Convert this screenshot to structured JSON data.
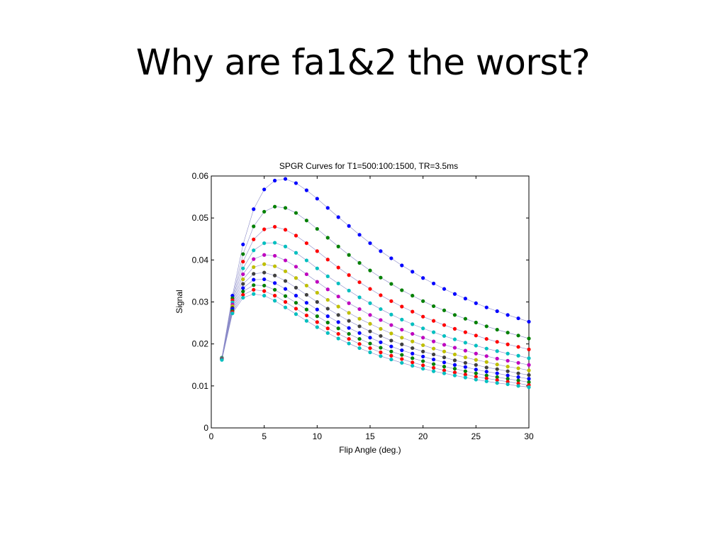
{
  "slide": {
    "title": "Why are fa1&2 the worst?"
  },
  "chart_data": {
    "type": "scatter",
    "title": "SPGR Curves for T1=500:100:1500, TR=3.5ms",
    "xlabel": "Flip Angle (deg.)",
    "ylabel": "Signal",
    "xlim": [
      0,
      30
    ],
    "ylim": [
      0,
      0.06
    ],
    "xticks": [
      0,
      5,
      10,
      15,
      20,
      25,
      30
    ],
    "xtick_labels": [
      "0",
      "5",
      "10",
      "15",
      "20",
      "25",
      "30"
    ],
    "yticks": [
      0,
      0.01,
      0.02,
      0.03,
      0.04,
      0.05,
      0.06
    ],
    "ytick_labels": [
      "0",
      "0.01",
      "0.02",
      "0.03",
      "0.04",
      "0.05",
      "0.06"
    ],
    "grid": false,
    "marker": "dot",
    "connecting_line_color": "#8a8ac8",
    "x": [
      1,
      2,
      3,
      4,
      5,
      6,
      7,
      8,
      9,
      10,
      11,
      12,
      13,
      14,
      15,
      16,
      17,
      18,
      19,
      20,
      21,
      22,
      23,
      24,
      25,
      26,
      27,
      28,
      29,
      30
    ],
    "series": [
      {
        "color": "#0000ff",
        "values": [
          0.0167,
          0.0315,
          0.0437,
          0.0521,
          0.0568,
          0.0589,
          0.0593,
          0.0583,
          0.0566,
          0.0546,
          0.0524,
          0.0502,
          0.0481,
          0.046,
          0.044,
          0.0421,
          0.0404,
          0.0387,
          0.0372,
          0.0357,
          0.0344,
          0.0331,
          0.0319,
          0.0308,
          0.0297,
          0.0287,
          0.0278,
          0.0269,
          0.0261,
          0.0253
        ]
      },
      {
        "color": "#008000",
        "values": [
          0.0167,
          0.0309,
          0.0414,
          0.048,
          0.0515,
          0.0527,
          0.0524,
          0.0512,
          0.0494,
          0.0474,
          0.0453,
          0.0432,
          0.0412,
          0.0393,
          0.0375,
          0.0358,
          0.0343,
          0.0328,
          0.0315,
          0.0302,
          0.029,
          0.028,
          0.0269,
          0.026,
          0.0251,
          0.0242,
          0.0234,
          0.0227,
          0.022,
          0.0213
        ]
      },
      {
        "color": "#ff0000",
        "values": [
          0.0166,
          0.0304,
          0.0396,
          0.0449,
          0.0473,
          0.0479,
          0.0472,
          0.0458,
          0.044,
          0.0421,
          0.0401,
          0.0382,
          0.0364,
          0.0347,
          0.0331,
          0.0316,
          0.0302,
          0.0289,
          0.0277,
          0.0265,
          0.0255,
          0.0245,
          0.0236,
          0.0228,
          0.022,
          0.0212,
          0.0205,
          0.0199,
          0.0193,
          0.0187
        ]
      },
      {
        "color": "#00bfbf",
        "values": [
          0.0166,
          0.0299,
          0.038,
          0.0423,
          0.044,
          0.0441,
          0.0432,
          0.0417,
          0.0399,
          0.038,
          0.0361,
          0.0344,
          0.0327,
          0.0311,
          0.0297,
          0.0283,
          0.027,
          0.0258,
          0.0247,
          0.0237,
          0.0228,
          0.0219,
          0.0211,
          0.0203,
          0.0196,
          0.0189,
          0.0183,
          0.0177,
          0.0172,
          0.0166
        ]
      },
      {
        "color": "#bf00bf",
        "values": [
          0.0165,
          0.0294,
          0.0366,
          0.0402,
          0.0412,
          0.041,
          0.0399,
          0.0384,
          0.0366,
          0.0348,
          0.033,
          0.0313,
          0.0297,
          0.0283,
          0.0269,
          0.0257,
          0.0245,
          0.0234,
          0.0224,
          0.0215,
          0.0206,
          0.0198,
          0.0191,
          0.0184,
          0.0177,
          0.0171,
          0.0165,
          0.016,
          0.0155,
          0.015
        ]
      },
      {
        "color": "#bfbf00",
        "values": [
          0.0165,
          0.029,
          0.0354,
          0.0383,
          0.039,
          0.0385,
          0.0373,
          0.0357,
          0.0339,
          0.0322,
          0.0305,
          0.0289,
          0.0274,
          0.026,
          0.0248,
          0.0236,
          0.0225,
          0.0215,
          0.0206,
          0.0197,
          0.0189,
          0.0182,
          0.0175,
          0.0168,
          0.0162,
          0.0157,
          0.0151,
          0.0146,
          0.0142,
          0.0137
        ]
      },
      {
        "color": "#404040",
        "values": [
          0.0164,
          0.0286,
          0.0343,
          0.0367,
          0.037,
          0.0363,
          0.035,
          0.0334,
          0.0317,
          0.03,
          0.0284,
          0.0269,
          0.0255,
          0.0242,
          0.023,
          0.0219,
          0.0208,
          0.0199,
          0.019,
          0.0182,
          0.0175,
          0.0168,
          0.0161,
          0.0155,
          0.015,
          0.0144,
          0.014,
          0.0135,
          0.013,
          0.0126
        ]
      },
      {
        "color": "#0000ff",
        "values": [
          0.0164,
          0.0283,
          0.0333,
          0.0353,
          0.0354,
          0.0345,
          0.0331,
          0.0315,
          0.0298,
          0.0282,
          0.0266,
          0.0252,
          0.0238,
          0.0226,
          0.0215,
          0.0204,
          0.0194,
          0.0185,
          0.0177,
          0.017,
          0.0163,
          0.0156,
          0.015,
          0.0145,
          0.0139,
          0.0134,
          0.013,
          0.0125,
          0.0121,
          0.0117
        ]
      },
      {
        "color": "#008000",
        "values": [
          0.0163,
          0.0279,
          0.0325,
          0.034,
          0.0339,
          0.0329,
          0.0314,
          0.0298,
          0.0282,
          0.0266,
          0.0251,
          0.0237,
          0.0224,
          0.0212,
          0.0201,
          0.0191,
          0.0182,
          0.0174,
          0.0166,
          0.0159,
          0.0152,
          0.0146,
          0.0141,
          0.0135,
          0.013,
          0.0125,
          0.0121,
          0.0117,
          0.0113,
          0.0109
        ]
      },
      {
        "color": "#ff0000",
        "values": [
          0.0163,
          0.0276,
          0.0317,
          0.0329,
          0.0326,
          0.0315,
          0.03,
          0.0284,
          0.0268,
          0.0252,
          0.0237,
          0.0224,
          0.0212,
          0.02,
          0.019,
          0.018,
          0.0172,
          0.0164,
          0.0156,
          0.0149,
          0.0143,
          0.0137,
          0.0132,
          0.0127,
          0.0122,
          0.0118,
          0.0114,
          0.011,
          0.0106,
          0.0102
        ]
      },
      {
        "color": "#00bfbf",
        "values": [
          0.0162,
          0.0273,
          0.031,
          0.0319,
          0.0315,
          0.0303,
          0.0287,
          0.0271,
          0.0255,
          0.024,
          0.0226,
          0.0213,
          0.0201,
          0.019,
          0.018,
          0.0171,
          0.0163,
          0.0155,
          0.0148,
          0.0141,
          0.0135,
          0.013,
          0.0125,
          0.012,
          0.0115,
          0.0111,
          0.0107,
          0.0104,
          0.01,
          0.0097
        ]
      }
    ]
  }
}
